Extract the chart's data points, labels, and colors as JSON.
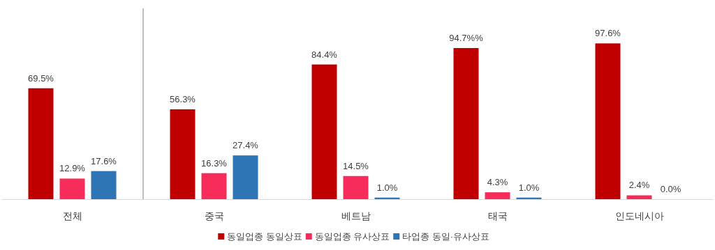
{
  "chart_data": {
    "type": "bar",
    "categories": [
      "전체",
      "중국",
      "베트남",
      "태국",
      "인도네시아"
    ],
    "series": [
      {
        "name": "동일업종 동일상표",
        "color": "#c00000",
        "values": [
          69.5,
          56.3,
          84.4,
          94.7,
          97.6
        ],
        "value_labels": [
          "69.5%",
          "56.3%",
          "84.4%",
          "94.7%%",
          "97.6%"
        ]
      },
      {
        "name": "동일업종 유사상표",
        "color": "#f72c5b",
        "values": [
          12.9,
          16.3,
          14.5,
          4.3,
          2.4
        ],
        "value_labels": [
          "12.9%",
          "16.3%",
          "14.5%",
          "4.3%",
          "2.4%"
        ]
      },
      {
        "name": "타업종 동일·유사상표",
        "color": "#2e75b6",
        "values": [
          17.6,
          27.4,
          1.0,
          1.0,
          0.0
        ],
        "value_labels": [
          "17.6%",
          "27.4%",
          "1.0%",
          "1.0%",
          "0.0%"
        ]
      }
    ],
    "legend": "bottom"
  }
}
